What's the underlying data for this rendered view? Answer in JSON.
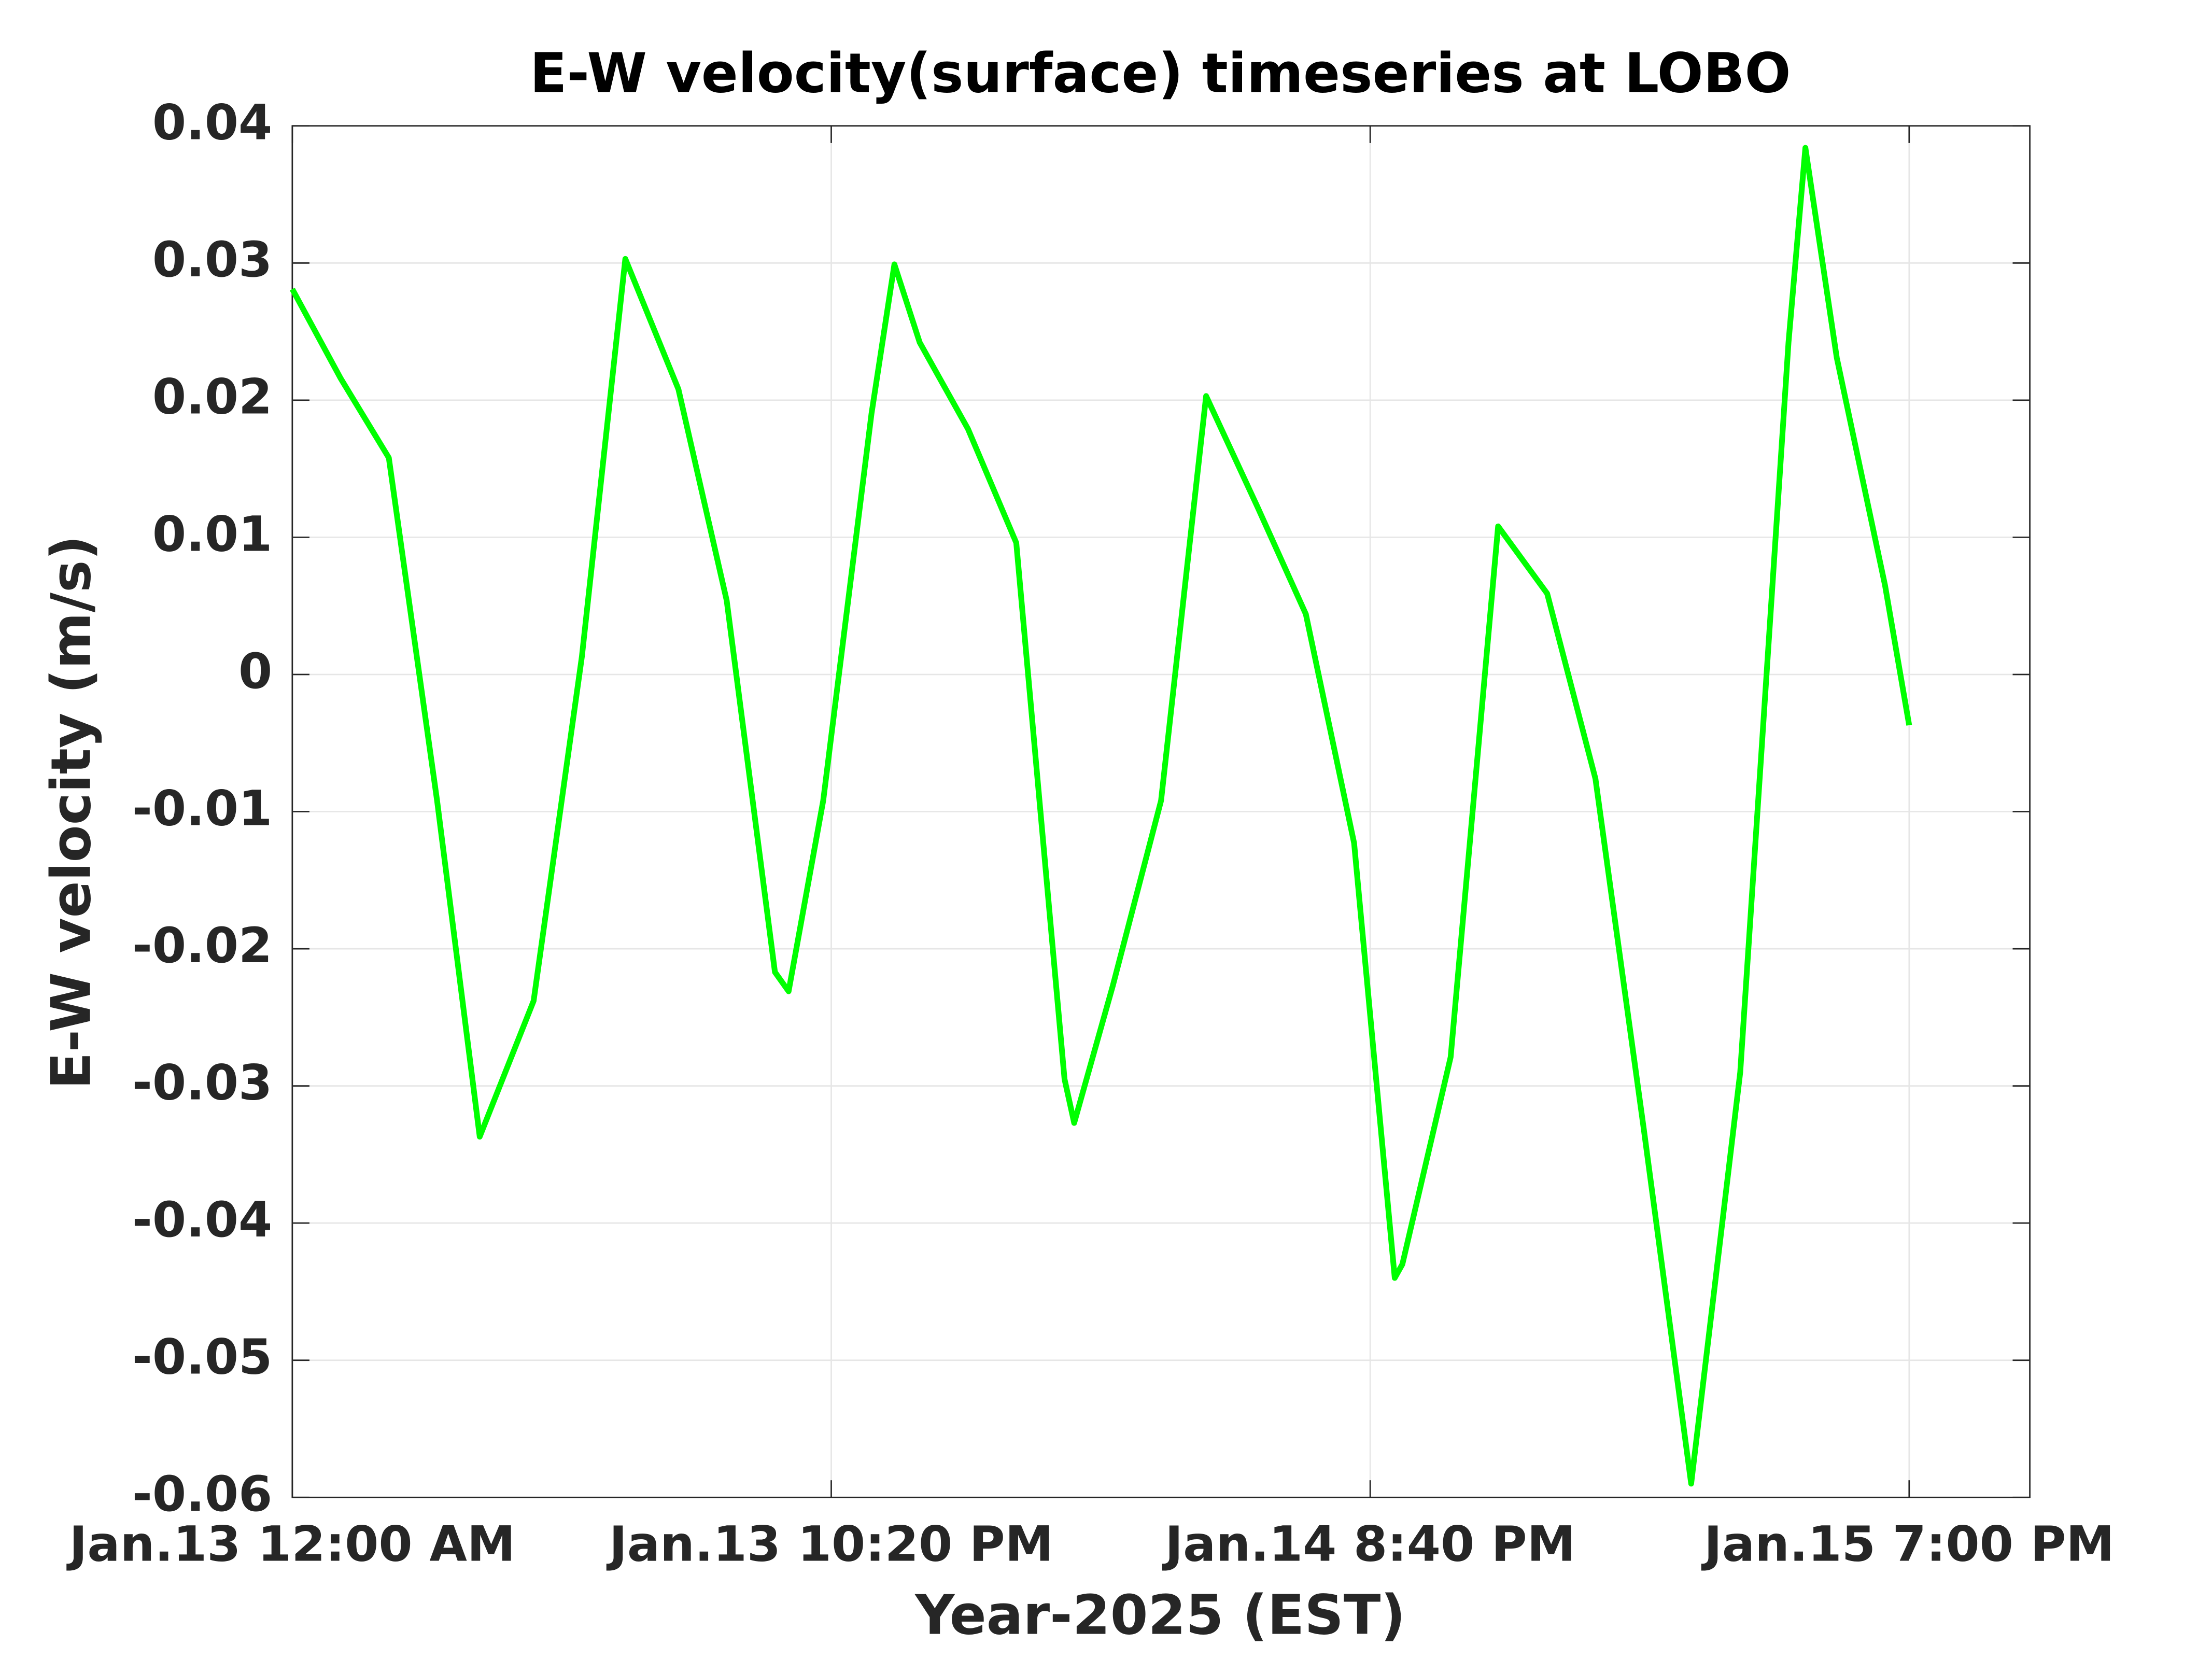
{
  "chart_data": {
    "type": "line",
    "title": "E-W velocity(surface) timeseries at LOBO",
    "x_label": "Year-2025 (EST)",
    "y_label": "E-W velocity (m/s)",
    "x": [
      "2025-01-13T00:00",
      "2025-01-13T02:00",
      "2025-01-13T04:00",
      "2025-01-13T06:00",
      "2025-01-13T07:46",
      "2025-01-13T10:00",
      "2025-01-13T12:00",
      "2025-01-13T13:48",
      "2025-01-13T16:00",
      "2025-01-13T18:00",
      "2025-01-13T20:00",
      "2025-01-13T20:34",
      "2025-01-13T22:00",
      "2025-01-14T00:00",
      "2025-01-14T00:57",
      "2025-01-14T02:00",
      "2025-01-14T04:00",
      "2025-01-14T06:00",
      "2025-01-14T08:00",
      "2025-01-14T08:24",
      "2025-01-14T10:00",
      "2025-01-14T12:00",
      "2025-01-14T13:52",
      "2025-01-14T16:00",
      "2025-01-14T18:00",
      "2025-01-14T20:00",
      "2025-01-14T21:41",
      "2025-01-14T22:00",
      "2025-01-15T00:00",
      "2025-01-15T01:58",
      "2025-01-15T04:00",
      "2025-01-15T06:00",
      "2025-01-15T08:00",
      "2025-01-15T09:58",
      "2025-01-15T12:00",
      "2025-01-15T14:00",
      "2025-01-15T14:42",
      "2025-01-15T16:00",
      "2025-01-15T18:00",
      "2025-01-15T19:00"
    ],
    "series": [
      {
        "name": "E-W velocity",
        "color": "#00ff00",
        "values": [
          0.0281,
          0.0216,
          0.0158,
          -0.0092,
          -0.0337,
          -0.0238,
          0.0013,
          0.0303,
          0.0208,
          0.0054,
          -0.0217,
          -0.0231,
          -0.0092,
          0.019,
          0.0299,
          0.0242,
          0.0179,
          0.0096,
          -0.0295,
          -0.0327,
          -0.0227,
          -0.0092,
          0.0203,
          0.0122,
          0.0044,
          -0.0123,
          -0.044,
          -0.043,
          -0.0279,
          0.0108,
          0.0059,
          -0.0076,
          -0.0331,
          -0.059,
          -0.029,
          0.0242,
          0.0384,
          0.0231,
          0.0065,
          -0.0037
        ]
      }
    ],
    "xlim": [
      "2025-01-13T00:00",
      "2025-01-16T00:00"
    ],
    "xticks": [
      {
        "value": "2025-01-13T00:00",
        "label": "Jan.13 12:00 AM"
      },
      {
        "value": "2025-01-13T22:20",
        "label": "Jan.13 10:20 PM"
      },
      {
        "value": "2025-01-14T20:40",
        "label": "Jan.14 8:40 PM"
      },
      {
        "value": "2025-01-15T19:00",
        "label": "Jan.15 7:00 PM"
      }
    ],
    "ylim": [
      -0.06,
      0.04
    ],
    "yticks": [
      -0.06,
      -0.05,
      -0.04,
      -0.03,
      -0.02,
      -0.01,
      0,
      0.01,
      0.02,
      0.03,
      0.04
    ],
    "grid": true
  }
}
